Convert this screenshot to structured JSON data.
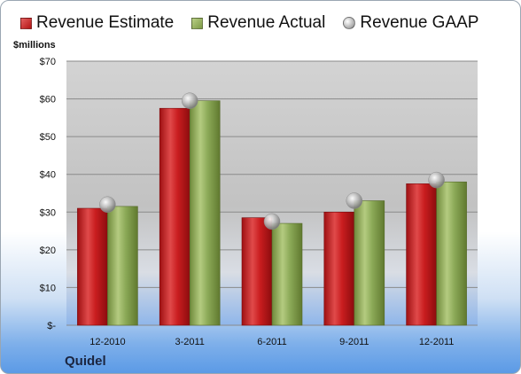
{
  "chart_data": {
    "type": "bar",
    "units_label": "$millions",
    "categories": [
      "12-2010",
      "3-2011",
      "6-2011",
      "9-2011",
      "12-2011"
    ],
    "series": [
      {
        "name": "Revenue Estimate",
        "kind": "bar",
        "color": "#c0181b",
        "values": [
          31,
          57.5,
          28.5,
          30,
          37.5
        ]
      },
      {
        "name": "Revenue Actual",
        "kind": "bar",
        "color": "#8bab52",
        "values": [
          31.5,
          59.5,
          27,
          33,
          38
        ]
      },
      {
        "name": "Revenue GAAP",
        "kind": "marker",
        "color": "#bdbdbd",
        "values": [
          32,
          59.5,
          27.5,
          33,
          38.5
        ]
      }
    ],
    "yticks": [
      0,
      10,
      20,
      30,
      40,
      50,
      60,
      70
    ],
    "ytick_labels": [
      "$-",
      "$10",
      "$20",
      "$30",
      "$40",
      "$50",
      "$60",
      "$70"
    ],
    "ylim": [
      0,
      70
    ],
    "grid": true,
    "legend_position": "top",
    "company": "Quidel"
  }
}
